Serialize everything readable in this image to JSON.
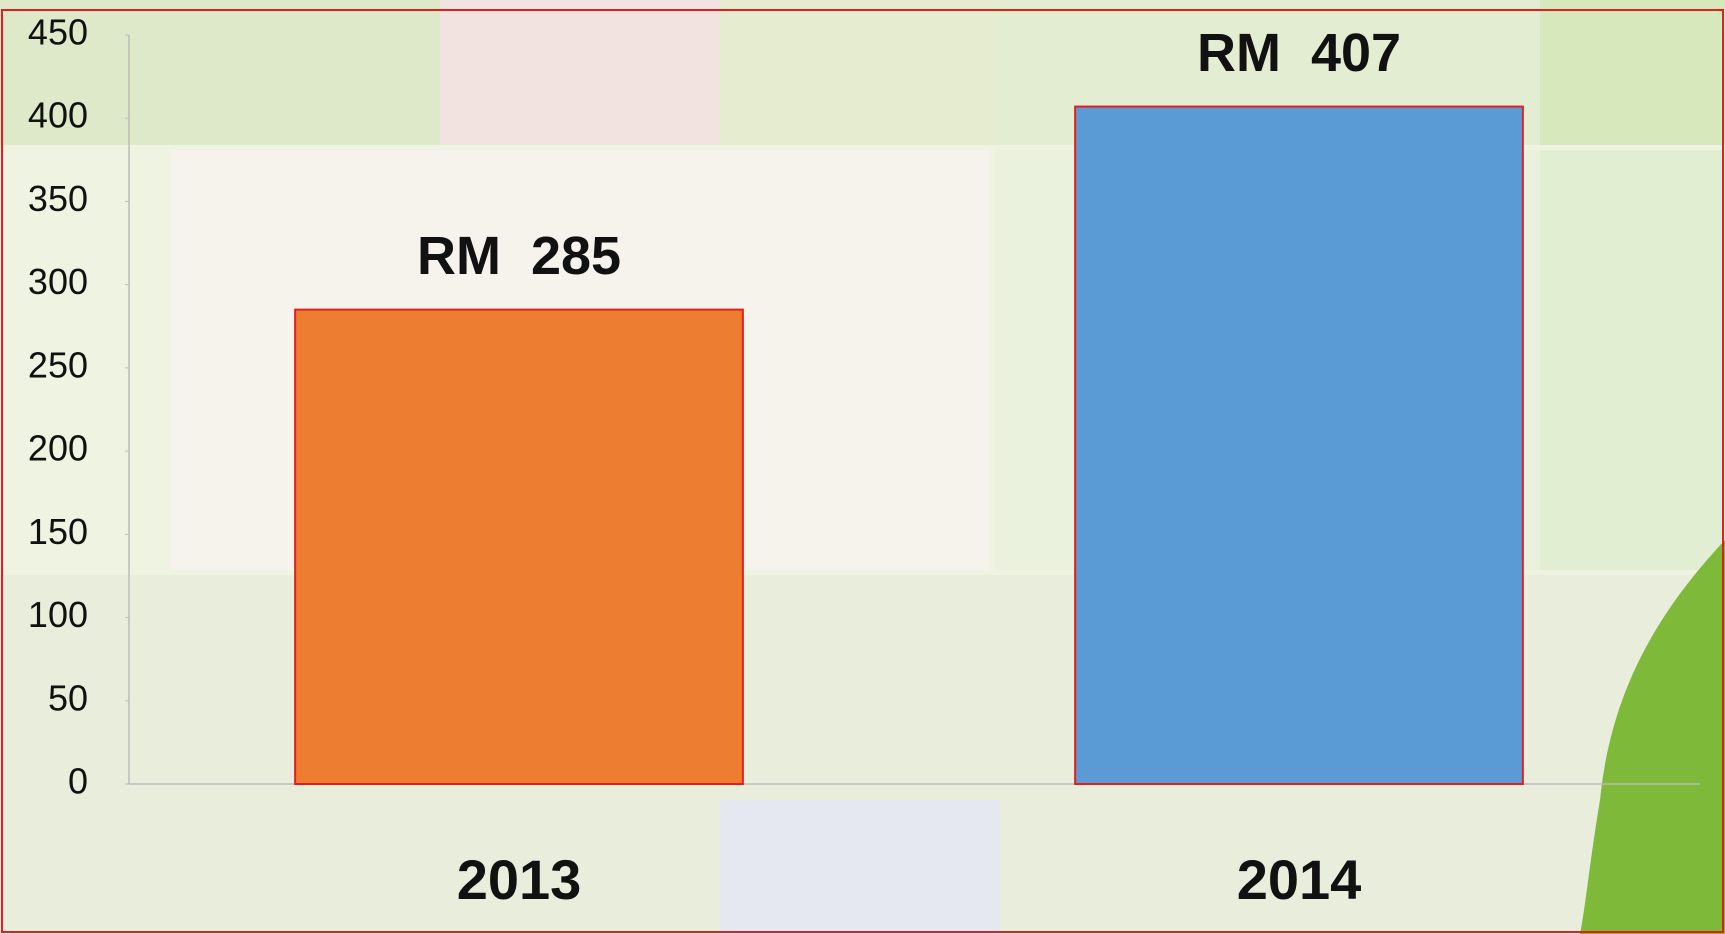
{
  "chart_data": {
    "type": "bar",
    "categories": [
      "2013",
      "2014"
    ],
    "values": [
      285,
      407
    ],
    "value_labels": [
      "RM  285",
      "RM  407"
    ],
    "colors": [
      "#ed7d31",
      "#5b9bd5"
    ],
    "ylim": [
      0,
      450
    ],
    "yticks": [
      0,
      50,
      100,
      150,
      200,
      250,
      300,
      350,
      400,
      450
    ],
    "grid": false
  }
}
